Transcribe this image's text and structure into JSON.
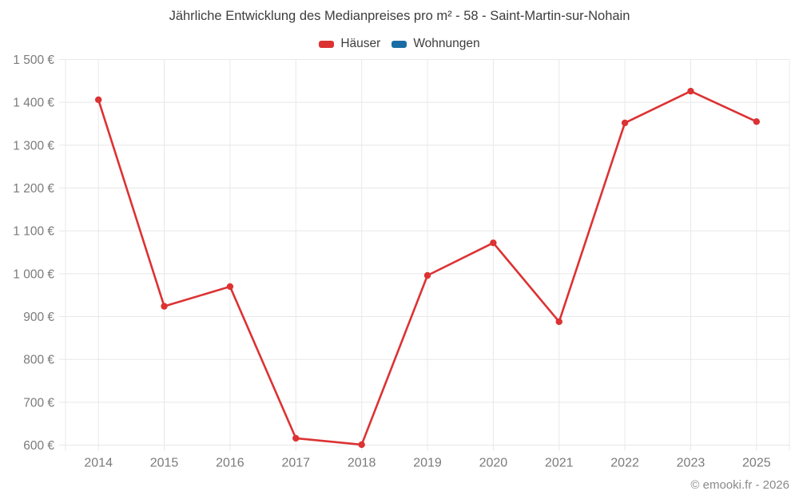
{
  "chart_data": {
    "type": "line",
    "title": "Jährliche Entwicklung des Medianpreises pro m² - 58 - Saint-Martin-sur-Nohain",
    "categories": [
      "2014",
      "2015",
      "2016",
      "2017",
      "2018",
      "2019",
      "2020",
      "2021",
      "2022",
      "2023",
      "2025"
    ],
    "series": [
      {
        "name": "Häuser",
        "color": "#dc3233",
        "values": [
          1406,
          924,
          970,
          616,
          601,
          996,
          1072,
          888,
          1352,
          1426,
          1355
        ]
      },
      {
        "name": "Wohnungen",
        "color": "#1a6da4",
        "values": []
      }
    ],
    "ylim": [
      600,
      1500
    ],
    "y_ticks": [
      {
        "value": 600,
        "label": "600 €"
      },
      {
        "value": 700,
        "label": "700 €"
      },
      {
        "value": 800,
        "label": "800 €"
      },
      {
        "value": 900,
        "label": "900 €"
      },
      {
        "value": 1000,
        "label": "1 000 €"
      },
      {
        "value": 1100,
        "label": "1 100 €"
      },
      {
        "value": 1200,
        "label": "1 200 €"
      },
      {
        "value": 1300,
        "label": "1 300 €"
      },
      {
        "value": 1400,
        "label": "1 400 €"
      },
      {
        "value": 1500,
        "label": "1 500 €"
      }
    ],
    "grid": true,
    "legend_position": "top",
    "xlabel": "",
    "ylabel": ""
  },
  "footer_credit": "© emooki.fr - 2026"
}
